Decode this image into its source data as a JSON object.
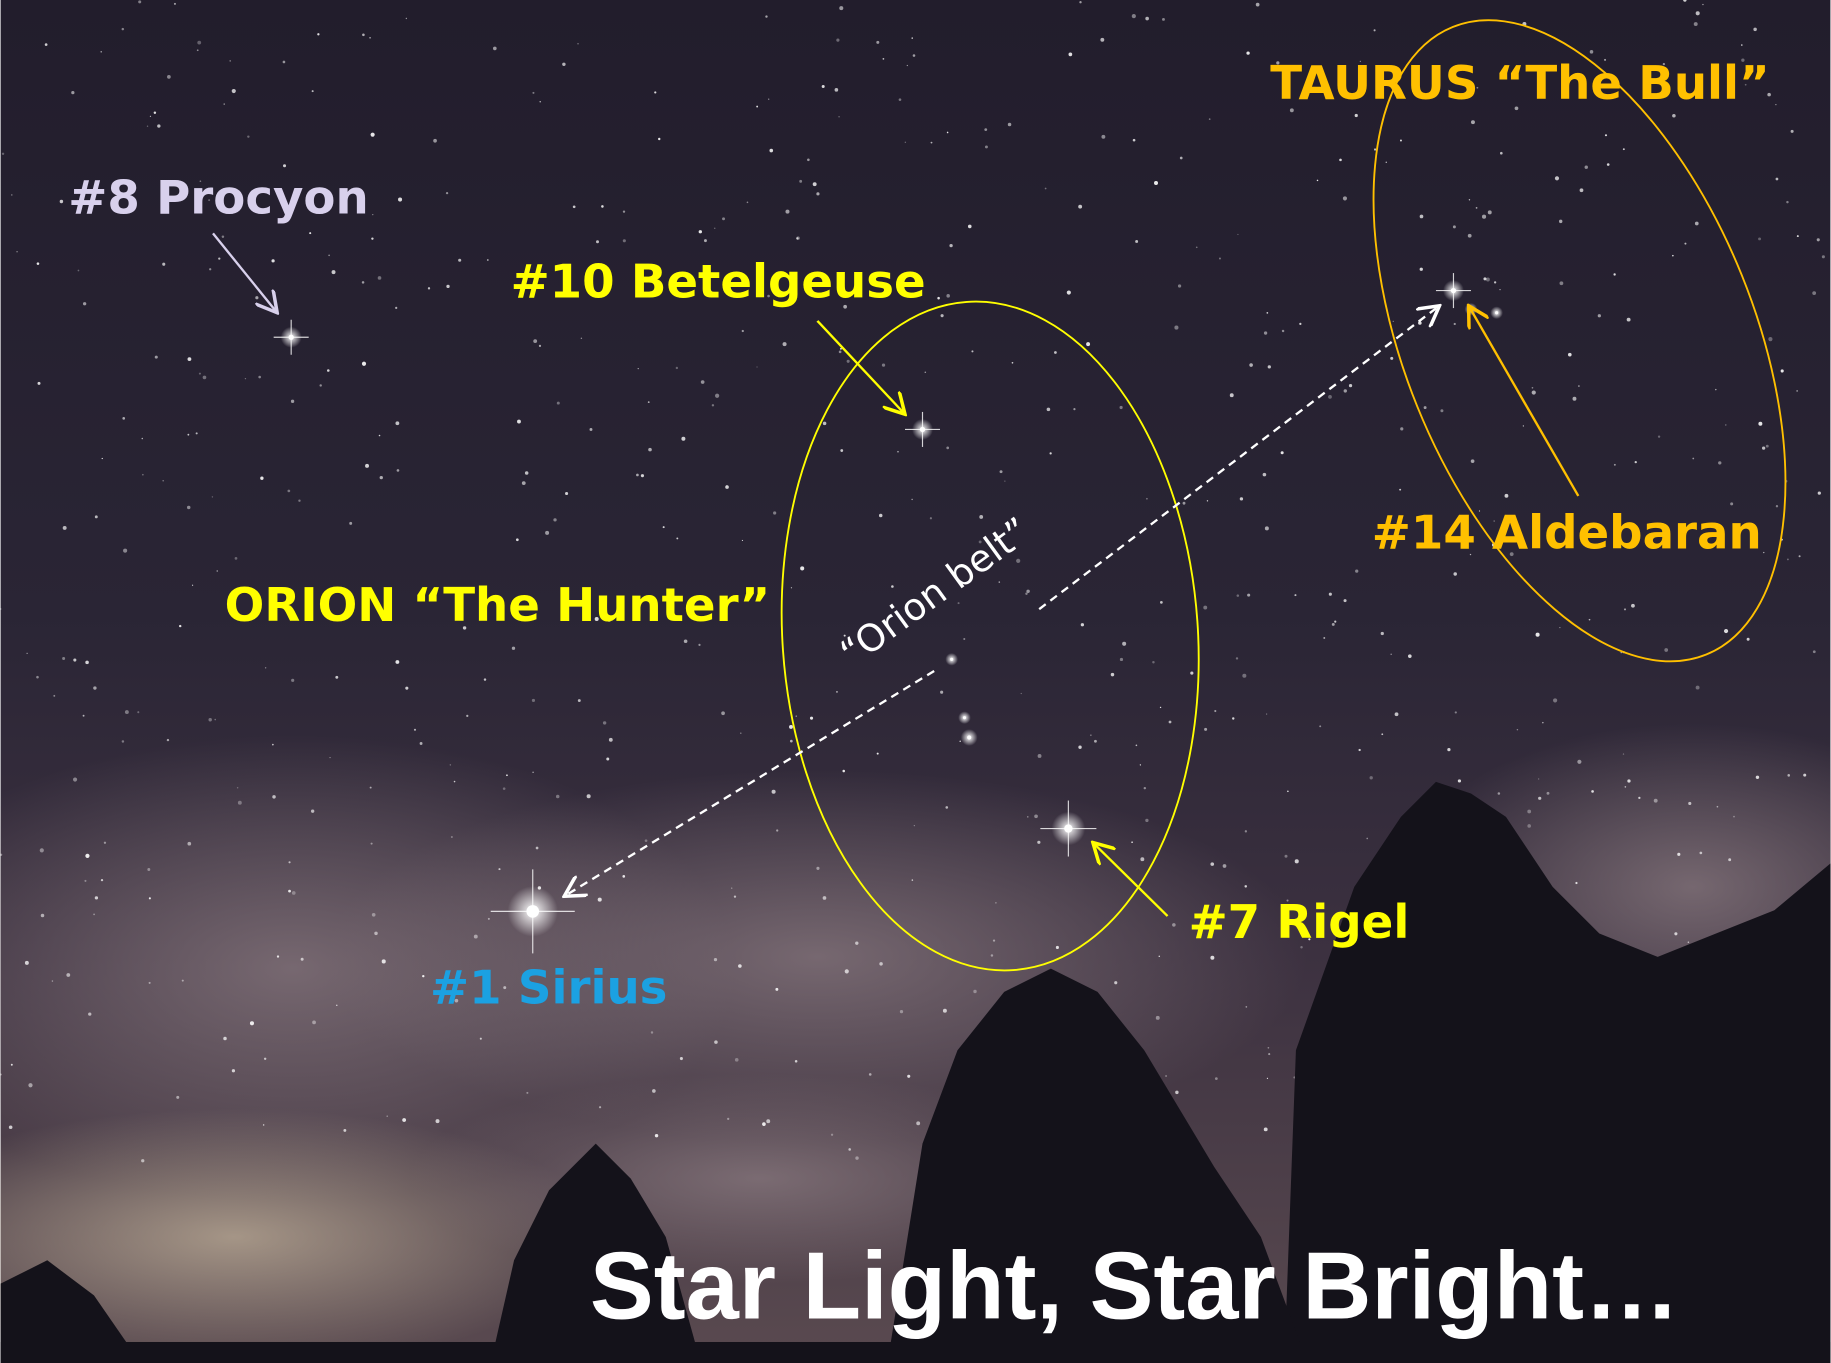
{
  "labels": {
    "procyon": "#8 Procyon",
    "betelgeuse": "#10 Betelgeuse",
    "taurus": "TAURUS “The Bull”",
    "orion": "ORION “The Hunter”",
    "belt": "“Orion belt”",
    "aldebaran": "#14 Aldebaran",
    "rigel": "#7 Rigel",
    "sirius": "#1 Sirius"
  },
  "title": "Star Light, Star Bright…"
}
